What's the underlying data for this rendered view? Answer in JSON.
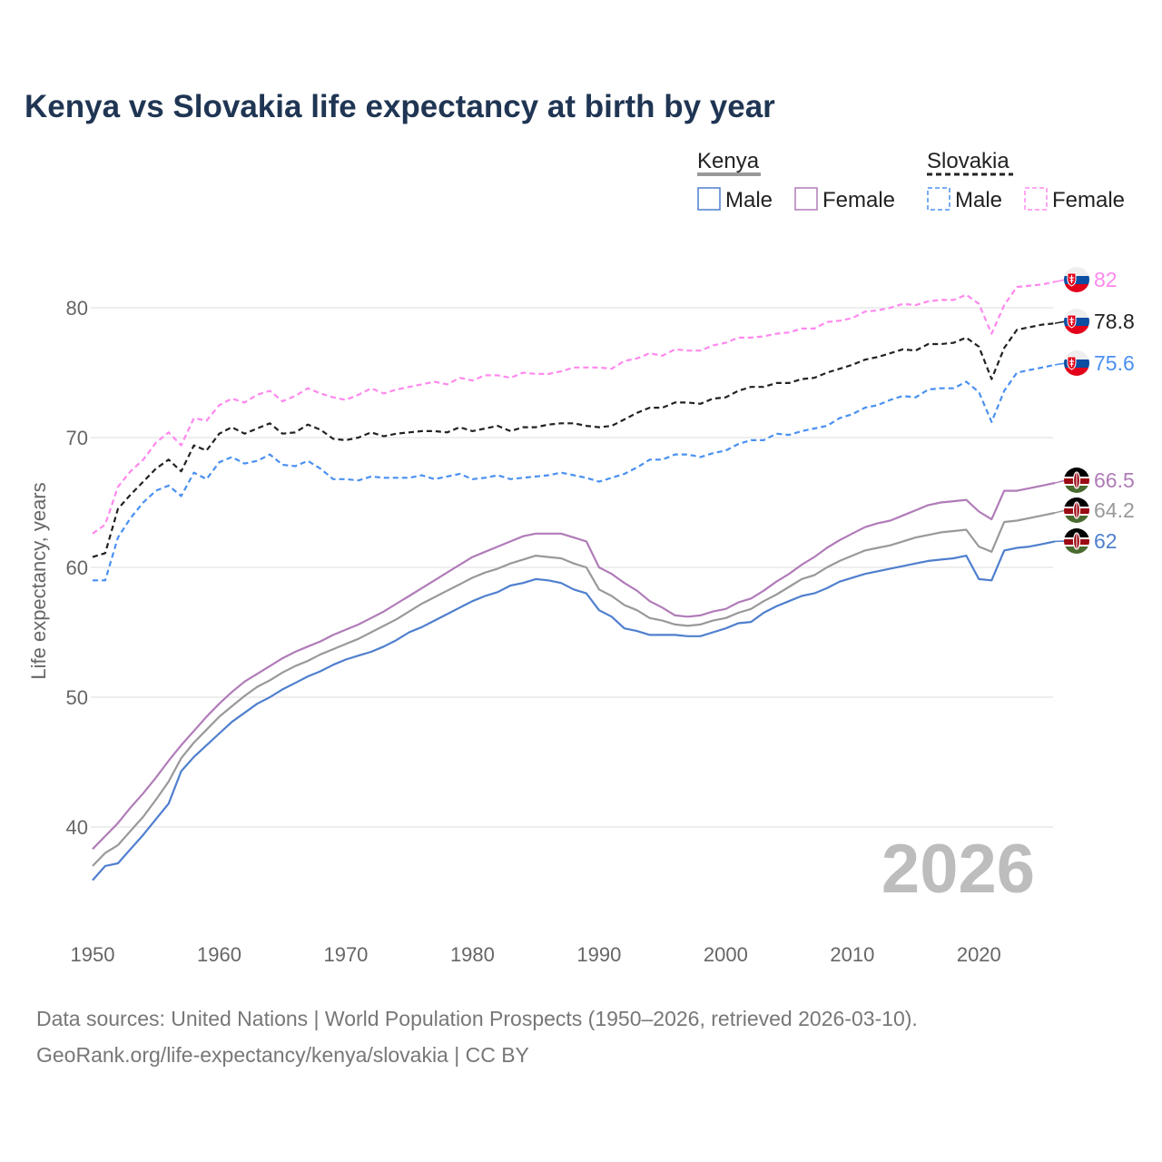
{
  "chart_data": {
    "type": "line",
    "title": "Kenya vs Slovakia life expectancy at birth by year",
    "xlabel": "",
    "ylabel": "Life expectancy, years",
    "xlim": [
      1950,
      2026
    ],
    "ylim": [
      34,
      86
    ],
    "x_ticks": [
      1950,
      1960,
      1970,
      1980,
      1990,
      2000,
      2010,
      2020
    ],
    "y_ticks": [
      40,
      50,
      60,
      70,
      80
    ],
    "grid": true,
    "year_marker": "2026",
    "legend": {
      "placement": "top-right",
      "groups": [
        {
          "name": "Kenya",
          "color": "#999999",
          "dashed": false,
          "items": [
            "Male",
            "Female"
          ]
        },
        {
          "name": "Slovakia",
          "color": "#222222",
          "dashed": true,
          "items": [
            "Male",
            "Female"
          ]
        }
      ]
    },
    "x_start": 1950,
    "series": [
      {
        "name": "Slovakia Female",
        "country": "Slovakia",
        "color": "#ff88ee",
        "dashed": true,
        "end_label": "82",
        "values": [
          62.6,
          63.3,
          66.2,
          67.4,
          68.3,
          69.6,
          70.4,
          69.4,
          71.5,
          71.3,
          72.5,
          73.0,
          72.7,
          73.3,
          73.6,
          72.8,
          73.2,
          73.8,
          73.4,
          73.1,
          72.9,
          73.3,
          73.8,
          73.4,
          73.7,
          73.9,
          74.1,
          74.3,
          74.1,
          74.6,
          74.4,
          74.8,
          74.8,
          74.6,
          75.0,
          74.9,
          74.9,
          75.1,
          75.4,
          75.4,
          75.4,
          75.3,
          75.9,
          76.1,
          76.5,
          76.3,
          76.8,
          76.7,
          76.7,
          77.1,
          77.3,
          77.7,
          77.7,
          77.8,
          78.0,
          78.1,
          78.4,
          78.4,
          78.9,
          79.0,
          79.2,
          79.7,
          79.8,
          80.0,
          80.3,
          80.2,
          80.5,
          80.6,
          80.6,
          81.0,
          80.3,
          78.0,
          80.2,
          81.6,
          81.7,
          81.8,
          82.0
        ]
      },
      {
        "name": "Slovakia Total",
        "country": "Slovakia",
        "color": "#222222",
        "dashed": true,
        "end_label": "78.8",
        "values": [
          60.8,
          61.1,
          64.5,
          65.6,
          66.6,
          67.6,
          68.3,
          67.4,
          69.4,
          69.0,
          70.3,
          70.8,
          70.3,
          70.7,
          71.1,
          70.3,
          70.4,
          71.0,
          70.6,
          69.9,
          69.8,
          70.0,
          70.4,
          70.1,
          70.3,
          70.4,
          70.5,
          70.5,
          70.4,
          70.8,
          70.5,
          70.7,
          70.9,
          70.5,
          70.8,
          70.8,
          71.0,
          71.1,
          71.1,
          70.9,
          70.8,
          70.9,
          71.4,
          71.9,
          72.3,
          72.3,
          72.7,
          72.7,
          72.6,
          73.0,
          73.1,
          73.6,
          73.9,
          73.9,
          74.2,
          74.2,
          74.5,
          74.6,
          75.0,
          75.3,
          75.6,
          76.0,
          76.2,
          76.5,
          76.8,
          76.7,
          77.2,
          77.2,
          77.3,
          77.7,
          77.0,
          74.5,
          76.9,
          78.3,
          78.5,
          78.7,
          78.8
        ]
      },
      {
        "name": "Slovakia Male",
        "country": "Slovakia",
        "color": "#4a90f0",
        "dashed": true,
        "end_label": "75.6",
        "values": [
          59.0,
          59.0,
          62.3,
          63.8,
          65.0,
          65.9,
          66.3,
          65.5,
          67.3,
          66.8,
          68.1,
          68.5,
          68.0,
          68.2,
          68.7,
          67.9,
          67.8,
          68.2,
          67.6,
          66.8,
          66.8,
          66.7,
          67.0,
          66.9,
          66.9,
          66.9,
          67.1,
          66.8,
          67.0,
          67.2,
          66.8,
          66.9,
          67.1,
          66.8,
          66.9,
          67.0,
          67.1,
          67.3,
          67.1,
          66.9,
          66.6,
          66.9,
          67.2,
          67.7,
          68.3,
          68.3,
          68.7,
          68.7,
          68.5,
          68.8,
          69.0,
          69.5,
          69.8,
          69.8,
          70.3,
          70.2,
          70.5,
          70.7,
          70.9,
          71.5,
          71.8,
          72.3,
          72.5,
          72.9,
          73.2,
          73.1,
          73.7,
          73.8,
          73.8,
          74.3,
          73.5,
          71.2,
          73.6,
          75.0,
          75.2,
          75.4,
          75.6
        ]
      },
      {
        "name": "Kenya Female",
        "country": "Kenya",
        "color": "#b07cb8",
        "dashed": false,
        "end_label": "66.5",
        "values": [
          38.3,
          39.3,
          40.3,
          41.5,
          42.6,
          43.8,
          45.1,
          46.3,
          47.4,
          48.5,
          49.5,
          50.4,
          51.2,
          51.8,
          52.4,
          53.0,
          53.5,
          53.9,
          54.3,
          54.8,
          55.2,
          55.6,
          56.1,
          56.6,
          57.2,
          57.8,
          58.4,
          59.0,
          59.6,
          60.2,
          60.8,
          61.2,
          61.6,
          62.0,
          62.4,
          62.6,
          62.6,
          62.6,
          62.3,
          62.0,
          60.0,
          59.5,
          58.8,
          58.2,
          57.4,
          56.9,
          56.3,
          56.2,
          56.3,
          56.6,
          56.8,
          57.3,
          57.6,
          58.2,
          58.9,
          59.5,
          60.2,
          60.8,
          61.5,
          62.1,
          62.6,
          63.1,
          63.4,
          63.6,
          64.0,
          64.4,
          64.8,
          65.0,
          65.1,
          65.2,
          64.3,
          63.7,
          65.9,
          65.9,
          66.1,
          66.3,
          66.5
        ]
      },
      {
        "name": "Kenya Total",
        "country": "Kenya",
        "color": "#999999",
        "dashed": false,
        "end_label": "64.2",
        "values": [
          37.0,
          38.0,
          38.6,
          39.7,
          40.8,
          42.1,
          43.5,
          45.3,
          46.5,
          47.5,
          48.5,
          49.3,
          50.1,
          50.8,
          51.3,
          51.9,
          52.4,
          52.8,
          53.3,
          53.7,
          54.1,
          54.5,
          55.0,
          55.5,
          56.0,
          56.6,
          57.2,
          57.7,
          58.2,
          58.7,
          59.2,
          59.6,
          59.9,
          60.3,
          60.6,
          60.9,
          60.8,
          60.7,
          60.3,
          60.0,
          58.3,
          57.8,
          57.1,
          56.7,
          56.1,
          55.9,
          55.6,
          55.5,
          55.6,
          55.9,
          56.1,
          56.5,
          56.8,
          57.4,
          57.9,
          58.5,
          59.1,
          59.4,
          60.0,
          60.5,
          60.9,
          61.3,
          61.5,
          61.7,
          62.0,
          62.3,
          62.5,
          62.7,
          62.8,
          62.9,
          61.6,
          61.2,
          63.5,
          63.6,
          63.8,
          64.0,
          64.2
        ]
      },
      {
        "name": "Kenya Male",
        "country": "Kenya",
        "color": "#4f7fce",
        "dashed": false,
        "end_label": "62",
        "values": [
          35.9,
          37.0,
          37.2,
          38.3,
          39.4,
          40.6,
          41.8,
          44.3,
          45.4,
          46.3,
          47.2,
          48.1,
          48.8,
          49.5,
          50.0,
          50.6,
          51.1,
          51.6,
          52.0,
          52.5,
          52.9,
          53.2,
          53.5,
          53.9,
          54.4,
          55.0,
          55.4,
          55.9,
          56.4,
          56.9,
          57.4,
          57.8,
          58.1,
          58.6,
          58.8,
          59.1,
          59.0,
          58.8,
          58.3,
          58.0,
          56.7,
          56.2,
          55.3,
          55.1,
          54.8,
          54.8,
          54.8,
          54.7,
          54.7,
          55.0,
          55.3,
          55.7,
          55.8,
          56.5,
          57.0,
          57.4,
          57.8,
          58.0,
          58.4,
          58.9,
          59.2,
          59.5,
          59.7,
          59.9,
          60.1,
          60.3,
          60.5,
          60.6,
          60.7,
          60.9,
          59.1,
          59.0,
          61.3,
          61.5,
          61.6,
          61.8,
          62.0
        ]
      }
    ]
  },
  "source": {
    "line1": "Data sources: United Nations | World Population Prospects (1950–2026, retrieved 2026-03-10).",
    "line2": "GeoRank.org/life-expectancy/kenya/slovakia | CC BY"
  }
}
